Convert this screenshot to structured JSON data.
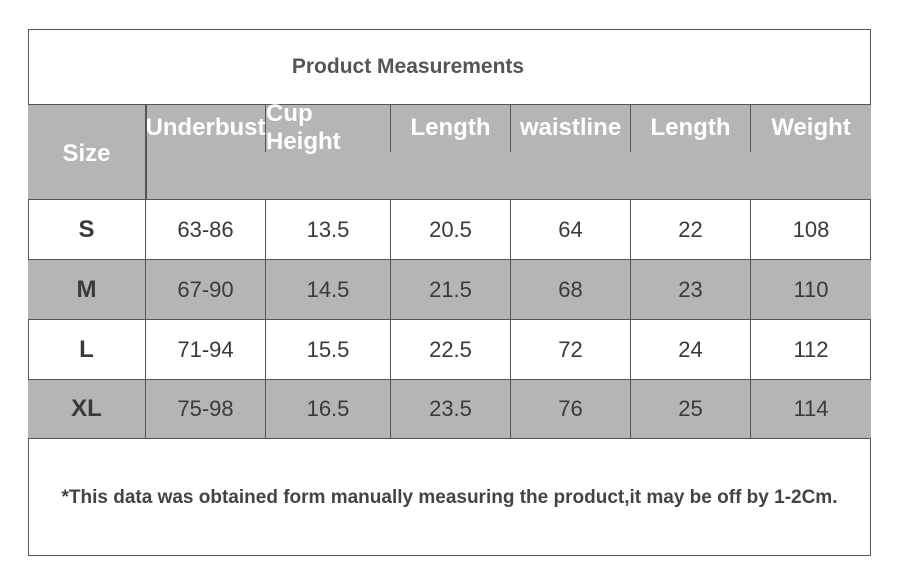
{
  "header": {
    "title": "Product Measurements"
  },
  "table": {
    "columns": [
      "Size",
      "Underbust",
      "Cup Height",
      "Length",
      "waistline",
      "Length",
      "Weight"
    ],
    "rows": [
      [
        "S",
        "63-86",
        "13.5",
        "20.5",
        "64",
        "22",
        "108"
      ],
      [
        "M",
        "67-90",
        "14.5",
        "21.5",
        "68",
        "23",
        "110"
      ],
      [
        "L",
        "71-94",
        "15.5",
        "22.5",
        "72",
        "24",
        "112"
      ],
      [
        "XL",
        "75-98",
        "16.5",
        "23.5",
        "76",
        "25",
        "114"
      ]
    ]
  },
  "footer": {
    "note": "*This data was obtained form manually measuring the product,it may be off by 1-2Cm."
  }
}
